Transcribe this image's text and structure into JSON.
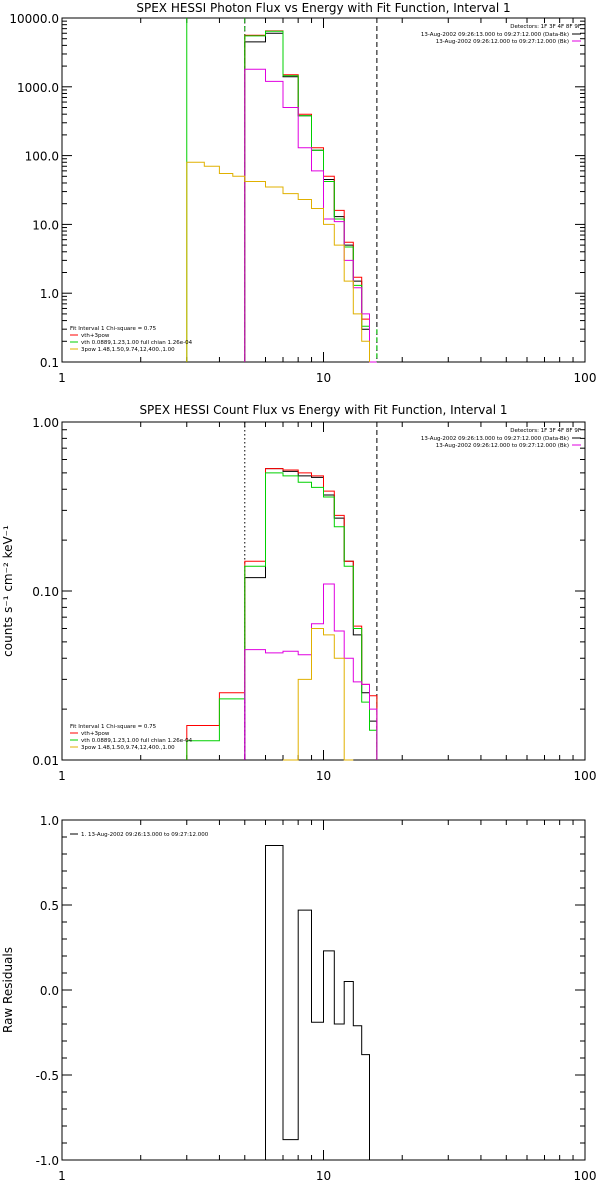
{
  "chart_data": [
    {
      "type": "line",
      "title": "SPEX HESSI Photon Flux vs Energy with Fit Function, Interval 1",
      "xlabel": "",
      "ylabel": "",
      "xscale": "log",
      "yscale": "log",
      "xlim": [
        1,
        100
      ],
      "ylim": [
        0.1,
        10000
      ],
      "xticks": [
        "1",
        "10",
        "100"
      ],
      "yticks": [
        "10000.0",
        "1000.0",
        "100.0",
        "10.0",
        "1.0",
        "0.1"
      ],
      "yticks_values": [
        10000,
        1000,
        100,
        10,
        1,
        0.1
      ],
      "colors": {
        "black": "#000000",
        "red": "#ff0000",
        "green": "#00d000",
        "magenta": "#e000e0",
        "orange": "#e0b000"
      },
      "vlines": [
        {
          "x": 3.0,
          "style": "solid",
          "color": "#00d000",
          "ymin": 0.1,
          "ymax": 10000
        },
        {
          "x": 5.0,
          "style": "dotted",
          "color": "#000000"
        },
        {
          "x": 5.0,
          "style": "dashed",
          "color": "#e000e0"
        },
        {
          "x": 5.0,
          "style": "dashed",
          "color": "#00d000"
        },
        {
          "x": 16.0,
          "style": "dashed",
          "color": "#000000"
        },
        {
          "x": 16.0,
          "style": "dashed",
          "color": "#00d000",
          "ymin": 0.1,
          "ymax": 0.3
        }
      ],
      "legend_right": {
        "header": "Detectors: 1F 3F 4F 8F 9F",
        "entries": [
          {
            "label": "13-Aug-2002 09:26:13.000 to 09:27:12.000 (Data-Bk)",
            "color": "#000000"
          },
          {
            "label": "13-Aug-2002 09:26:12.000 to 09:27:12.000 (Bk)",
            "color": "#e000e0"
          }
        ]
      },
      "legend_left": {
        "header": "Fit Interval 1    Chi-square = 0.75",
        "entries": [
          {
            "label": "vth+3pow",
            "color": "#ff0000"
          },
          {
            "label": "vth 0.0889,1.23,1.00  full chian 1.26e-04",
            "color": "#00d000"
          },
          {
            "label": "3pow 1.48,1.50,9.74,12,400.,1.00",
            "color": "#e0b000"
          }
        ]
      },
      "series": [
        {
          "name": "Data-Bk",
          "color": "#000000",
          "edges": [
            5.0,
            6.0,
            7.0,
            8.0,
            9.0,
            10.0,
            11.0,
            12.0,
            13.0,
            14.0,
            15.0,
            16.0
          ],
          "values": [
            4500,
            6000,
            1400,
            380,
            120,
            45,
            13,
            5,
            1.5,
            0.3,
            0.1
          ]
        },
        {
          "name": "vth+3pow",
          "color": "#ff0000",
          "edges": [
            5.0,
            6.0,
            7.0,
            8.0,
            9.0,
            10.0,
            11.0,
            12.0,
            13.0,
            14.0,
            15.0,
            16.0
          ],
          "values": [
            5600,
            6500,
            1500,
            400,
            130,
            50,
            16,
            5.5,
            1.7,
            0.42,
            0.1
          ]
        },
        {
          "name": "vth",
          "color": "#00d000",
          "edges": [
            5.0,
            6.0,
            7.0,
            8.0,
            9.0,
            10.0,
            11.0,
            12.0,
            13.0,
            14.0,
            15.0,
            16.0
          ],
          "values": [
            5500,
            6400,
            1450,
            380,
            120,
            42,
            12,
            4.7,
            1.3,
            0.33,
            0.1
          ]
        },
        {
          "name": "Bk",
          "color": "#e000e0",
          "edges": [
            5.0,
            6.0,
            7.0,
            8.0,
            9.0,
            10.0,
            11.0,
            12.0,
            13.0,
            14.0,
            15.0,
            16.0
          ],
          "values": [
            1800,
            1200,
            500,
            130,
            60,
            12,
            11,
            3,
            1.2,
            0.5,
            0.1
          ]
        },
        {
          "name": "3pow",
          "color": "#e0b000",
          "edges": [
            3.0,
            3.5,
            4.0,
            4.5,
            5.0,
            6.0,
            7.0,
            8.0,
            9.0,
            10.0,
            11.0,
            12.0,
            13.0,
            14.0,
            15.0
          ],
          "values": [
            80,
            70,
            55,
            50,
            42,
            35,
            28,
            23,
            17,
            10,
            5,
            1.5,
            0.5,
            0.2
          ]
        }
      ]
    },
    {
      "type": "line",
      "title": "SPEX HESSI Count Flux vs Energy with Fit Function, Interval 1",
      "xlabel": "",
      "ylabel": "counts s⁻¹ cm⁻² keV⁻¹",
      "xscale": "log",
      "yscale": "log",
      "xlim": [
        1,
        100
      ],
      "ylim": [
        0.01,
        1.0
      ],
      "xticks": [
        "1",
        "10",
        "100"
      ],
      "yticks": [
        "1.00",
        "0.10",
        "0.01"
      ],
      "yticks_values": [
        1.0,
        0.1,
        0.01
      ],
      "vlines": [
        {
          "x": 5.0,
          "style": "dotted",
          "color": "#000000"
        },
        {
          "x": 5.0,
          "style": "dashed",
          "color": "#e000e0",
          "ymin": 0.01,
          "ymax": 0.045
        },
        {
          "x": 16.0,
          "style": "dashed",
          "color": "#000000"
        },
        {
          "x": 16.0,
          "style": "dashed",
          "color": "#00d000",
          "ymin": 0.01,
          "ymax": 0.023
        }
      ],
      "legend_right": {
        "header": "Detectors: 1F 3F 4F 8F 9F",
        "entries": [
          {
            "label": "13-Aug-2002 09:26:13.000 to 09:27:12.000 (Data-Bk)",
            "color": "#000000"
          },
          {
            "label": "13-Aug-2002 09:26:12.000 to 09:27:12.000 (Bk)",
            "color": "#e000e0"
          }
        ]
      },
      "legend_left": {
        "header": "Fit Interval 1    Chi-square = 0.75",
        "entries": [
          {
            "label": "vth+3pow",
            "color": "#ff0000"
          },
          {
            "label": "vth 0.0889,1.23,1.00  full chian 1.26e-04",
            "color": "#00d000"
          },
          {
            "label": "3pow 1.48,1.50,9.74,12,400.,1.00",
            "color": "#e0b000"
          }
        ]
      },
      "series": [
        {
          "name": "Data-Bk",
          "color": "#000000",
          "edges": [
            5.0,
            6.0,
            7.0,
            8.0,
            9.0,
            10.0,
            11.0,
            12.0,
            13.0,
            14.0,
            15.0,
            16.0
          ],
          "values": [
            0.12,
            0.53,
            0.51,
            0.48,
            0.47,
            0.37,
            0.27,
            0.15,
            0.055,
            0.025,
            0.017
          ]
        },
        {
          "name": "vth+3pow",
          "color": "#ff0000",
          "edges": [
            3.0,
            4.0,
            5.0,
            6.0,
            7.0,
            8.0,
            9.0,
            10.0,
            11.0,
            12.0,
            13.0,
            14.0,
            15.0,
            16.0
          ],
          "values": [
            0.016,
            0.025,
            0.15,
            0.53,
            0.52,
            0.5,
            0.48,
            0.39,
            0.28,
            0.15,
            0.062,
            0.028,
            0.024
          ]
        },
        {
          "name": "vth",
          "color": "#00d000",
          "edges": [
            3.0,
            4.0,
            5.0,
            6.0,
            7.0,
            8.0,
            9.0,
            10.0,
            11.0,
            12.0,
            13.0,
            14.0,
            15.0,
            16.0
          ],
          "values": [
            0.013,
            0.023,
            0.14,
            0.5,
            0.48,
            0.44,
            0.41,
            0.36,
            0.24,
            0.14,
            0.06,
            0.022,
            0.015
          ]
        },
        {
          "name": "Bk",
          "color": "#e000e0",
          "edges": [
            5.0,
            6.0,
            7.0,
            8.0,
            9.0,
            10.0,
            11.0,
            12.0,
            13.0,
            14.0,
            15.0,
            16.0
          ],
          "values": [
            0.045,
            0.043,
            0.044,
            0.042,
            0.064,
            0.11,
            0.058,
            0.04,
            0.029,
            0.028,
            0.02
          ]
        },
        {
          "name": "3pow",
          "color": "#e0b000",
          "edges": [
            7.0,
            8.0,
            9.0,
            10.0,
            11.0,
            12.0,
            13.0
          ],
          "values": [
            0.01,
            0.03,
            0.06,
            0.055,
            0.04,
            0.01
          ]
        }
      ]
    },
    {
      "type": "line",
      "title": "",
      "xlabel": "",
      "ylabel": "Raw Residuals",
      "xscale": "log",
      "yscale": "linear",
      "xlim": [
        1,
        100
      ],
      "ylim": [
        -1.0,
        1.0
      ],
      "xticks": [
        "1",
        "10",
        "100"
      ],
      "yticks": [
        "1.0",
        "0.5",
        "0.0",
        "-0.5",
        "-1.0"
      ],
      "yticks_values": [
        1.0,
        0.5,
        0.0,
        -0.5,
        -1.0
      ],
      "legend": {
        "entries": [
          {
            "label": "1. 13-Aug-2002 09:26:13.000 to 09:27:12.000",
            "color": "#000000"
          }
        ]
      },
      "series": [
        {
          "name": "",
          "color": "#000000",
          "edges": [
            5.0,
            6.0,
            7.0,
            8.0,
            9.0,
            10.0,
            11.0,
            12.0,
            13.0,
            14.0,
            15.0,
            16.0
          ],
          "values": [
            -1.0,
            0.85,
            -0.88,
            0.47,
            -0.19,
            0.23,
            -0.2,
            0.05,
            -0.21,
            -0.38,
            -1.0
          ]
        }
      ]
    }
  ]
}
